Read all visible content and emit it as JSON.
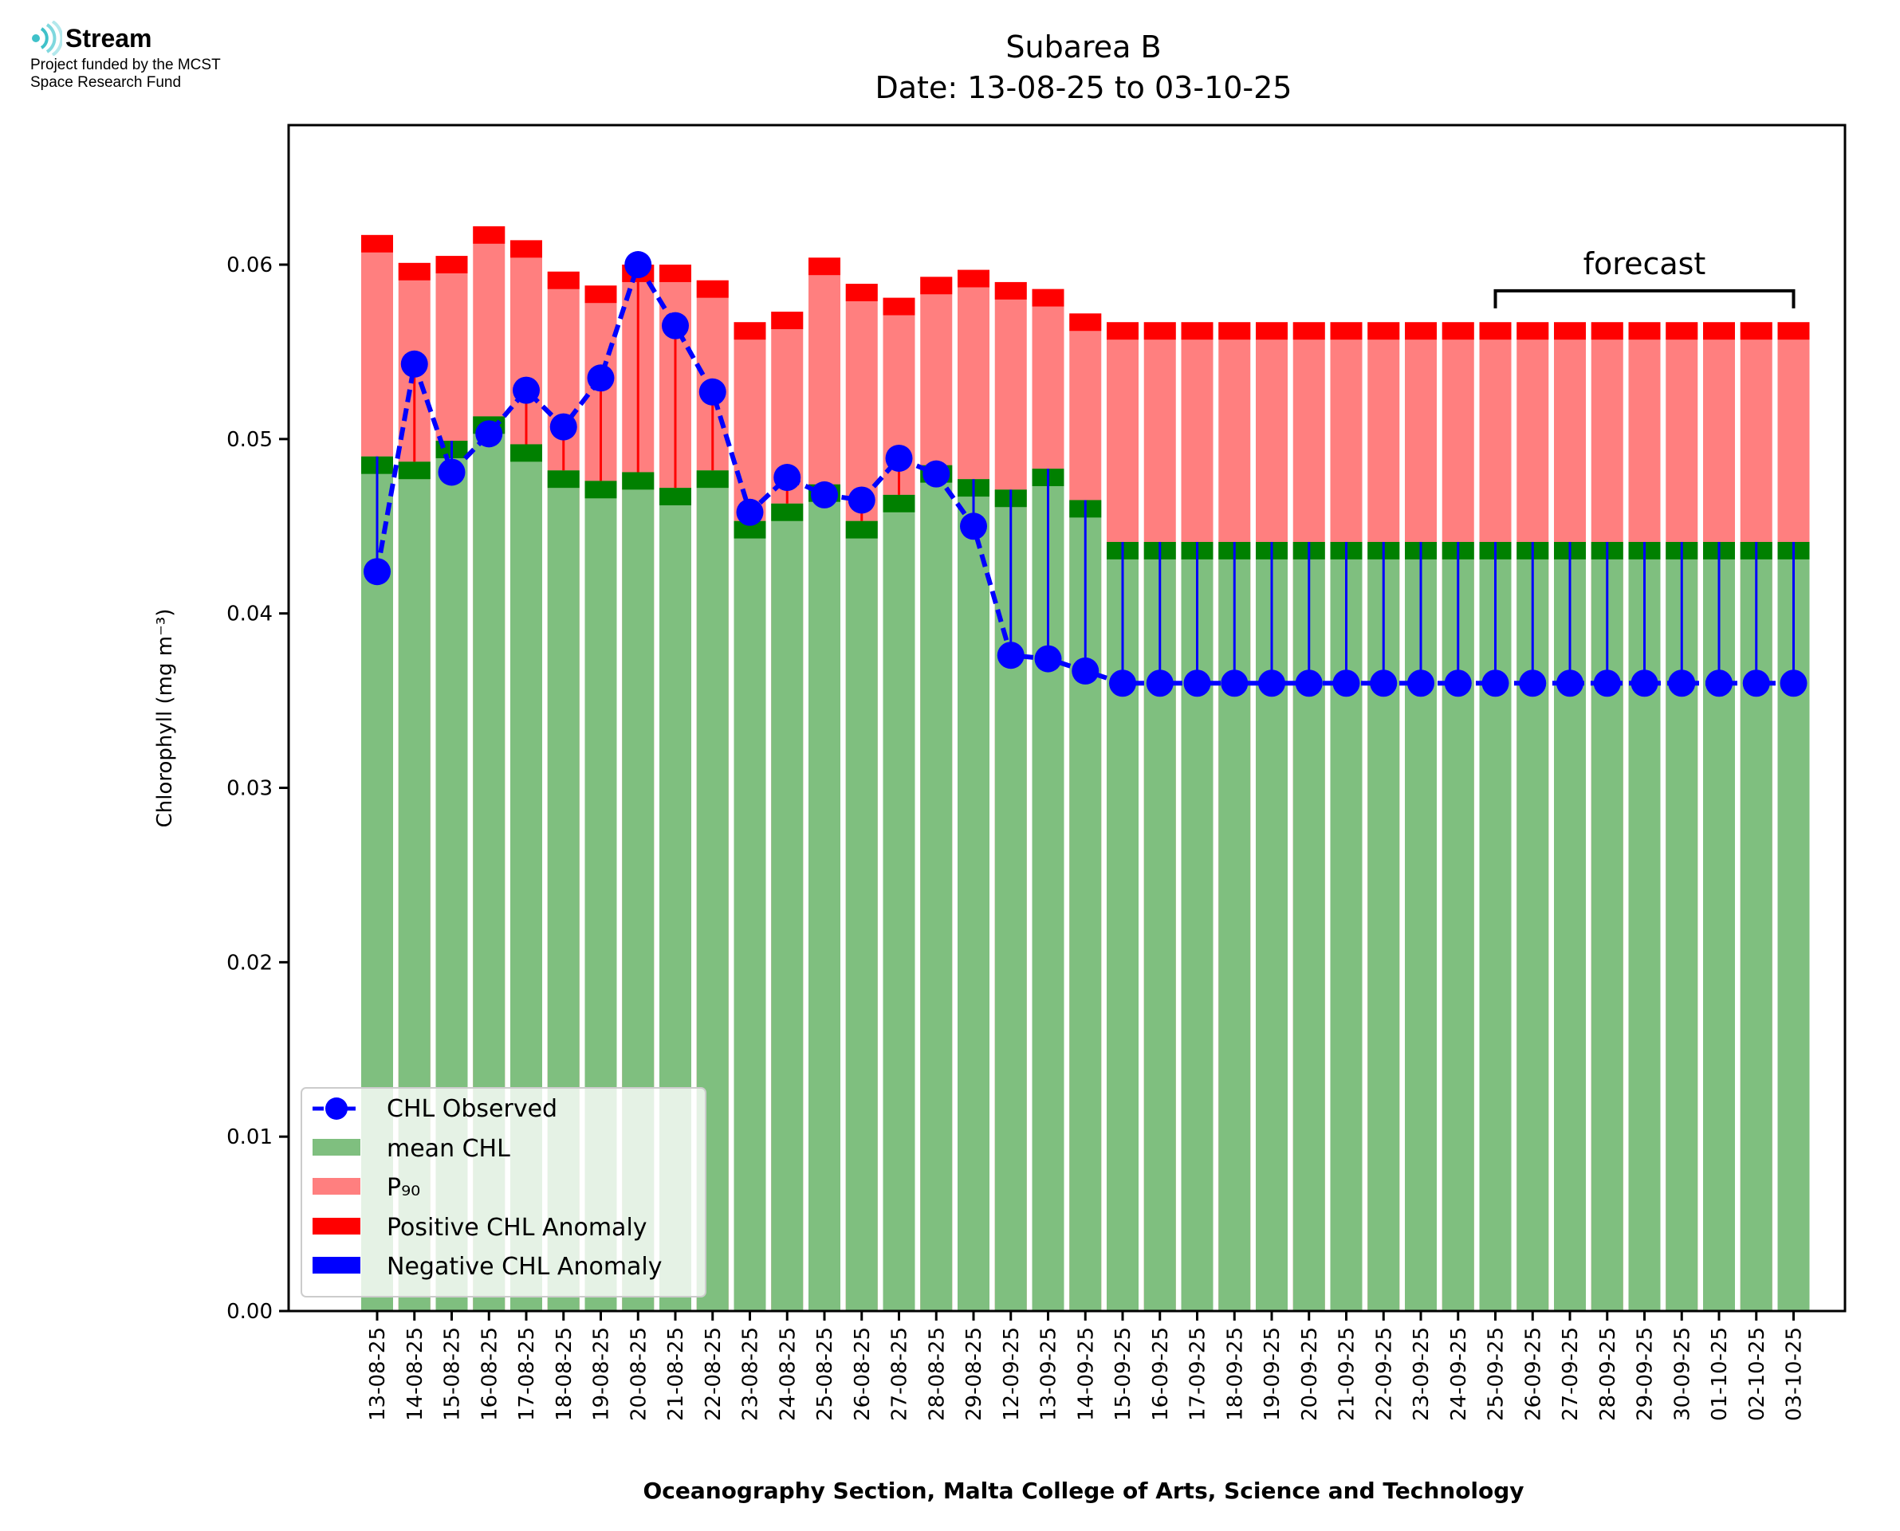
{
  "logo": {
    "name": "Stream",
    "subtitle_line1": "Project funded by the MCST",
    "subtitle_line2": "Space Research Fund"
  },
  "chart_data": {
    "type": "bar",
    "title": "Subarea B",
    "subtitle": "Date: 13-08-25 to 03-10-25",
    "xlabel": "Oceanography Section, Malta College of Arts, Science and Technology",
    "ylabel": "Chlorophyll (mg m⁻³)",
    "ylim": [
      0,
      0.068
    ],
    "yticks": [
      0,
      0.01,
      0.02,
      0.03,
      0.04,
      0.05,
      0.06
    ],
    "ytick_labels": [
      "0.00",
      "0.01",
      "0.02",
      "0.03",
      "0.04",
      "0.05",
      "0.06"
    ],
    "grid": false,
    "legend_position": "lower-left",
    "categories": [
      "13-08-25",
      "14-08-25",
      "15-08-25",
      "16-08-25",
      "17-08-25",
      "18-08-25",
      "19-08-25",
      "20-08-25",
      "21-08-25",
      "22-08-25",
      "23-08-25",
      "24-08-25",
      "25-08-25",
      "26-08-25",
      "27-08-25",
      "28-08-25",
      "29-08-25",
      "12-09-25",
      "13-09-25",
      "14-09-25",
      "15-09-25",
      "16-09-25",
      "17-09-25",
      "18-09-25",
      "19-09-25",
      "20-09-25",
      "21-09-25",
      "22-09-25",
      "23-09-25",
      "24-09-25",
      "25-09-25",
      "26-09-25",
      "27-09-25",
      "28-09-25",
      "29-09-25",
      "30-09-25",
      "01-10-25",
      "02-10-25",
      "03-10-25"
    ],
    "series": [
      {
        "name": "CHL Observed",
        "color": "#0000ff",
        "style": "dashed-line-with-markers",
        "values": [
          0.0424,
          0.0543,
          0.0481,
          0.0503,
          0.0528,
          0.0507,
          0.0535,
          0.06,
          0.0565,
          0.0527,
          0.0458,
          0.0478,
          0.0468,
          0.0465,
          0.0489,
          0.048,
          0.045,
          0.0376,
          0.0374,
          0.0367,
          0.036,
          0.036,
          0.036,
          0.036,
          0.036,
          0.036,
          0.036,
          0.036,
          0.036,
          0.036,
          0.036,
          0.036,
          0.036,
          0.036,
          0.036,
          0.036,
          0.036,
          0.036,
          0.036
        ]
      },
      {
        "name": "mean CHL",
        "color": "#7fbf7f",
        "values": [
          0.048,
          0.0477,
          0.0489,
          0.0503,
          0.0487,
          0.0472,
          0.0466,
          0.0471,
          0.0462,
          0.0472,
          0.0443,
          0.0453,
          0.0464,
          0.0443,
          0.0458,
          0.0475,
          0.0467,
          0.0461,
          0.0473,
          0.0455,
          0.0431,
          0.0431,
          0.0431,
          0.0431,
          0.0431,
          0.0431,
          0.0431,
          0.0431,
          0.0431,
          0.0431,
          0.0431,
          0.0431,
          0.0431,
          0.0431,
          0.0431,
          0.0431,
          0.0431,
          0.0431,
          0.0431
        ]
      },
      {
        "name": "P₉₀",
        "color": "#ff7f7f",
        "values": [
          0.0607,
          0.0591,
          0.0595,
          0.0612,
          0.0604,
          0.0586,
          0.0578,
          0.059,
          0.059,
          0.0581,
          0.0557,
          0.0563,
          0.0594,
          0.0579,
          0.0571,
          0.0583,
          0.0587,
          0.058,
          0.0576,
          0.0562,
          0.0557,
          0.0557,
          0.0557,
          0.0557,
          0.0557,
          0.0557,
          0.0557,
          0.0557,
          0.0557,
          0.0557,
          0.0557,
          0.0557,
          0.0557,
          0.0557,
          0.0557,
          0.0557,
          0.0557,
          0.0557,
          0.0557
        ]
      },
      {
        "name": "Positive CHL Anomaly",
        "color": "#ff0000"
      },
      {
        "name": "Negative CHL Anomaly",
        "color": "#0000ff"
      }
    ],
    "annotations": [
      {
        "text": "forecast",
        "from": "25-09-25",
        "to": "03-10-25"
      }
    ]
  }
}
